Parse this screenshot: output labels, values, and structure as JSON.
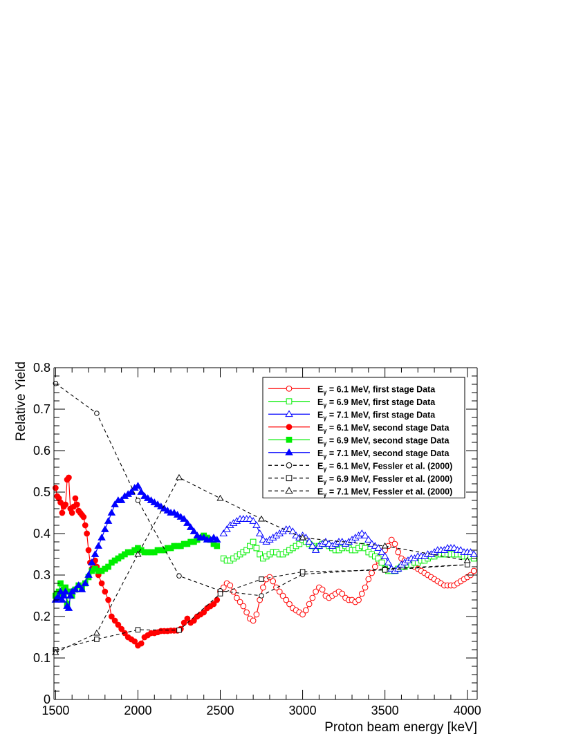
{
  "chart_data": {
    "type": "line",
    "title": "",
    "xlabel": "Proton beam energy [keV]",
    "ylabel": "Relative Yield",
    "xlim": [
      1490,
      4060
    ],
    "ylim": [
      0,
      0.8
    ],
    "x_ticks": [
      1500,
      2000,
      2500,
      3000,
      3500,
      4000
    ],
    "x_tick_labels": [
      "1500",
      "2000",
      "2500",
      "3000",
      "3500",
      "4000"
    ],
    "y_ticks": [
      0,
      0.1,
      0.2,
      0.3,
      0.4,
      0.5,
      0.6,
      0.7,
      0.8
    ],
    "y_tick_labels": [
      "0",
      "0.1",
      "0.2",
      "0.3",
      "0.4",
      "0.5",
      "0.6",
      "0.7",
      "0.8"
    ],
    "grid": false,
    "legend_position": "top-right",
    "series": [
      {
        "name": "Eγ = 6.1 MeV, first stage Data",
        "legend_main": "E",
        "legend_sub": "γ",
        "legend_rest": " = 6.1 MeV, first stage Data",
        "color": "#ff0000",
        "marker": "open-circle",
        "dash": "solid",
        "x": [
          2500,
          2520,
          2540,
          2560,
          2580,
          2600,
          2620,
          2640,
          2660,
          2680,
          2700,
          2720,
          2740,
          2760,
          2780,
          2800,
          2820,
          2840,
          2860,
          2880,
          2900,
          2920,
          2940,
          2960,
          2980,
          3000,
          3020,
          3040,
          3060,
          3080,
          3100,
          3120,
          3140,
          3160,
          3180,
          3200,
          3220,
          3240,
          3260,
          3280,
          3300,
          3320,
          3340,
          3360,
          3380,
          3400,
          3420,
          3440,
          3460,
          3480,
          3500,
          3520,
          3540,
          3560,
          3580,
          3600,
          3620,
          3640,
          3660,
          3680,
          3700,
          3720,
          3740,
          3760,
          3780,
          3800,
          3820,
          3840,
          3860,
          3880,
          3900,
          3920,
          3940,
          3960,
          3980,
          4000,
          4020,
          4040
        ],
        "y": [
          0.26,
          0.27,
          0.28,
          0.275,
          0.26,
          0.245,
          0.235,
          0.225,
          0.21,
          0.195,
          0.19,
          0.205,
          0.24,
          0.27,
          0.29,
          0.295,
          0.285,
          0.27,
          0.26,
          0.25,
          0.24,
          0.23,
          0.22,
          0.215,
          0.21,
          0.205,
          0.215,
          0.23,
          0.245,
          0.26,
          0.27,
          0.265,
          0.25,
          0.245,
          0.25,
          0.255,
          0.26,
          0.255,
          0.245,
          0.24,
          0.24,
          0.235,
          0.24,
          0.255,
          0.27,
          0.29,
          0.305,
          0.32,
          0.335,
          0.345,
          0.36,
          0.37,
          0.385,
          0.375,
          0.355,
          0.34,
          0.335,
          0.33,
          0.325,
          0.32,
          0.315,
          0.31,
          0.305,
          0.3,
          0.295,
          0.29,
          0.285,
          0.28,
          0.275,
          0.275,
          0.275,
          0.275,
          0.28,
          0.285,
          0.29,
          0.295,
          0.3,
          0.31
        ]
      },
      {
        "name": "Eγ = 6.9 MeV, first stage Data",
        "legend_main": "E",
        "legend_sub": "γ",
        "legend_rest": " = 6.9 MeV, first stage Data",
        "color": "#00ee00",
        "marker": "open-square",
        "dash": "solid",
        "x": [
          2520,
          2540,
          2560,
          2580,
          2600,
          2620,
          2640,
          2660,
          2680,
          2700,
          2720,
          2740,
          2760,
          2780,
          2800,
          2820,
          2840,
          2860,
          2880,
          2900,
          2920,
          2940,
          2960,
          2980,
          3000,
          3020,
          3040,
          3060,
          3080,
          3100,
          3120,
          3140,
          3160,
          3180,
          3200,
          3220,
          3240,
          3260,
          3280,
          3300,
          3320,
          3340,
          3360,
          3380,
          3400,
          3420,
          3440,
          3460,
          3480,
          3500,
          3520,
          3540,
          3560,
          3580,
          3600,
          3620,
          3640,
          3660,
          3680,
          3700,
          3720,
          3740,
          3760,
          3780,
          3800,
          3820,
          3840,
          3860,
          3880,
          3900,
          3920,
          3940,
          3960,
          3980,
          4000,
          4020,
          4040
        ],
        "y": [
          0.34,
          0.335,
          0.335,
          0.34,
          0.345,
          0.35,
          0.355,
          0.36,
          0.37,
          0.38,
          0.365,
          0.35,
          0.34,
          0.345,
          0.35,
          0.355,
          0.355,
          0.35,
          0.35,
          0.355,
          0.36,
          0.365,
          0.37,
          0.375,
          0.385,
          0.38,
          0.375,
          0.37,
          0.365,
          0.37,
          0.375,
          0.375,
          0.37,
          0.365,
          0.36,
          0.36,
          0.365,
          0.37,
          0.365,
          0.36,
          0.36,
          0.365,
          0.37,
          0.365,
          0.355,
          0.35,
          0.345,
          0.34,
          0.33,
          0.315,
          0.31,
          0.31,
          0.31,
          0.315,
          0.32,
          0.32,
          0.325,
          0.325,
          0.33,
          0.33,
          0.335,
          0.335,
          0.34,
          0.345,
          0.345,
          0.35,
          0.35,
          0.35,
          0.35,
          0.35,
          0.35,
          0.35,
          0.35,
          0.345,
          0.345,
          0.345,
          0.34
        ]
      },
      {
        "name": "Eγ = 7.1 MeV, first stage Data",
        "legend_main": "E",
        "legend_sub": "γ",
        "legend_rest": " = 7.1 MeV, first stage Data",
        "color": "#0000ff",
        "marker": "open-triangle",
        "dash": "solid",
        "x": [
          2520,
          2540,
          2560,
          2580,
          2600,
          2620,
          2640,
          2660,
          2680,
          2700,
          2720,
          2740,
          2760,
          2780,
          2800,
          2820,
          2840,
          2860,
          2880,
          2900,
          2920,
          2940,
          2960,
          2980,
          3000,
          3020,
          3040,
          3060,
          3080,
          3100,
          3120,
          3140,
          3160,
          3180,
          3200,
          3220,
          3240,
          3260,
          3280,
          3300,
          3320,
          3340,
          3360,
          3380,
          3400,
          3420,
          3440,
          3460,
          3480,
          3500,
          3520,
          3540,
          3560,
          3580,
          3600,
          3620,
          3640,
          3660,
          3680,
          3700,
          3720,
          3740,
          3760,
          3780,
          3800,
          3820,
          3840,
          3860,
          3880,
          3900,
          3920,
          3940,
          3960,
          3980,
          4000,
          4020,
          4040
        ],
        "y": [
          0.4,
          0.41,
          0.42,
          0.425,
          0.43,
          0.435,
          0.435,
          0.435,
          0.435,
          0.43,
          0.42,
          0.4,
          0.385,
          0.38,
          0.385,
          0.39,
          0.395,
          0.4,
          0.405,
          0.41,
          0.41,
          0.405,
          0.395,
          0.39,
          0.395,
          0.39,
          0.38,
          0.37,
          0.36,
          0.37,
          0.375,
          0.38,
          0.375,
          0.37,
          0.375,
          0.38,
          0.38,
          0.375,
          0.38,
          0.385,
          0.39,
          0.395,
          0.4,
          0.395,
          0.385,
          0.375,
          0.37,
          0.365,
          0.355,
          0.345,
          0.33,
          0.315,
          0.31,
          0.315,
          0.325,
          0.33,
          0.335,
          0.34,
          0.34,
          0.345,
          0.345,
          0.345,
          0.35,
          0.35,
          0.355,
          0.36,
          0.36,
          0.36,
          0.365,
          0.365,
          0.365,
          0.36,
          0.36,
          0.355,
          0.355,
          0.355,
          0.35
        ]
      },
      {
        "name": "Eγ = 6.1 MeV, second stage Data",
        "legend_main": "E",
        "legend_sub": "γ",
        "legend_rest": " = 6.1 MeV, second stage Data",
        "color": "#ff0000",
        "marker": "filled-circle",
        "dash": "solid",
        "x": [
          1500,
          1510,
          1520,
          1530,
          1540,
          1550,
          1560,
          1570,
          1580,
          1590,
          1600,
          1610,
          1620,
          1630,
          1640,
          1650,
          1660,
          1670,
          1680,
          1690,
          1700,
          1710,
          1720,
          1730,
          1740,
          1750,
          1760,
          1780,
          1800,
          1820,
          1840,
          1860,
          1880,
          1900,
          1920,
          1940,
          1960,
          1980,
          2000,
          2020,
          2040,
          2060,
          2080,
          2100,
          2120,
          2140,
          2160,
          2180,
          2200,
          2220,
          2240,
          2260,
          2280,
          2300,
          2320,
          2340,
          2360,
          2380,
          2400,
          2420,
          2440,
          2460,
          2480
        ],
        "y": [
          0.51,
          0.49,
          0.485,
          0.475,
          0.45,
          0.465,
          0.47,
          0.53,
          0.535,
          0.46,
          0.45,
          0.465,
          0.485,
          0.47,
          0.455,
          0.45,
          0.445,
          0.44,
          0.42,
          0.4,
          0.36,
          0.33,
          0.315,
          0.33,
          0.335,
          0.32,
          0.3,
          0.28,
          0.26,
          0.24,
          0.2,
          0.19,
          0.18,
          0.17,
          0.16,
          0.15,
          0.145,
          0.14,
          0.13,
          0.135,
          0.15,
          0.155,
          0.16,
          0.16,
          0.162,
          0.165,
          0.165,
          0.165,
          0.166,
          0.166,
          0.166,
          0.17,
          0.185,
          0.195,
          0.185,
          0.19,
          0.2,
          0.205,
          0.21,
          0.22,
          0.225,
          0.23,
          0.24
        ]
      },
      {
        "name": "Eγ = 6.9 MeV, second stage Data",
        "legend_main": "E",
        "legend_sub": "γ",
        "legend_rest": " = 6.9 MeV, second stage Data",
        "color": "#00ee00",
        "marker": "filled-square",
        "dash": "solid",
        "x": [
          1500,
          1510,
          1520,
          1530,
          1540,
          1550,
          1560,
          1570,
          1580,
          1590,
          1600,
          1620,
          1640,
          1660,
          1680,
          1700,
          1720,
          1740,
          1760,
          1780,
          1800,
          1820,
          1840,
          1860,
          1880,
          1900,
          1920,
          1940,
          1960,
          1980,
          2000,
          2020,
          2040,
          2060,
          2080,
          2100,
          2120,
          2140,
          2160,
          2180,
          2200,
          2220,
          2240,
          2260,
          2280,
          2300,
          2320,
          2340,
          2360,
          2380,
          2400,
          2420,
          2440,
          2460,
          2480
        ],
        "y": [
          0.25,
          0.255,
          0.26,
          0.28,
          0.255,
          0.265,
          0.27,
          0.23,
          0.26,
          0.26,
          0.25,
          0.265,
          0.275,
          0.27,
          0.28,
          0.295,
          0.31,
          0.315,
          0.31,
          0.31,
          0.315,
          0.32,
          0.33,
          0.335,
          0.34,
          0.345,
          0.35,
          0.355,
          0.355,
          0.36,
          0.365,
          0.36,
          0.355,
          0.355,
          0.355,
          0.355,
          0.36,
          0.36,
          0.36,
          0.365,
          0.365,
          0.37,
          0.37,
          0.37,
          0.375,
          0.375,
          0.38,
          0.38,
          0.385,
          0.39,
          0.395,
          0.39,
          0.385,
          0.375,
          0.37
        ]
      },
      {
        "name": "Eγ = 7.1 MeV, second stage Data",
        "legend_main": "E",
        "legend_sub": "γ",
        "legend_rest": " = 7.1 MeV, second stage Data",
        "color": "#0000ff",
        "marker": "filled-triangle",
        "dash": "solid",
        "x": [
          1500,
          1510,
          1520,
          1530,
          1540,
          1550,
          1560,
          1570,
          1580,
          1590,
          1600,
          1620,
          1640,
          1660,
          1680,
          1700,
          1720,
          1740,
          1760,
          1780,
          1800,
          1820,
          1840,
          1860,
          1880,
          1900,
          1920,
          1940,
          1960,
          1980,
          2000,
          2020,
          2040,
          2060,
          2080,
          2100,
          2120,
          2140,
          2160,
          2180,
          2200,
          2220,
          2240,
          2260,
          2280,
          2300,
          2320,
          2340,
          2360,
          2380,
          2400,
          2420,
          2440,
          2460,
          2480
        ],
        "y": [
          0.24,
          0.245,
          0.245,
          0.26,
          0.24,
          0.25,
          0.26,
          0.225,
          0.22,
          0.25,
          0.26,
          0.265,
          0.275,
          0.265,
          0.28,
          0.3,
          0.33,
          0.35,
          0.37,
          0.39,
          0.41,
          0.43,
          0.45,
          0.47,
          0.48,
          0.48,
          0.49,
          0.495,
          0.5,
          0.51,
          0.515,
          0.5,
          0.49,
          0.485,
          0.48,
          0.475,
          0.47,
          0.465,
          0.46,
          0.455,
          0.45,
          0.45,
          0.445,
          0.44,
          0.435,
          0.425,
          0.415,
          0.405,
          0.395,
          0.39,
          0.39,
          0.385,
          0.385,
          0.39,
          0.385
        ]
      },
      {
        "name": "Eγ = 6.1 MeV, Fessler et al. (2000)",
        "legend_main": "E",
        "legend_sub": "γ",
        "legend_rest": " = 6.1 MeV, Fessler et al. (2000)",
        "color": "#000000",
        "marker": "open-circle",
        "dash": "dashed",
        "x": [
          1500,
          1750,
          2000,
          2250,
          2500,
          2750,
          3000,
          3500,
          4000
        ],
        "y": [
          0.762,
          0.69,
          0.48,
          0.298,
          0.262,
          0.25,
          0.302,
          0.315,
          0.325
        ]
      },
      {
        "name": "Eγ = 6.9 MeV, Fessler et al. (2000)",
        "legend_main": "E",
        "legend_sub": "γ",
        "legend_rest": " = 6.9 MeV, Fessler et al. (2000)",
        "color": "#000000",
        "marker": "open-square",
        "dash": "dashed",
        "x": [
          1500,
          1750,
          2000,
          2250,
          2500,
          2750,
          3000,
          3500,
          4000
        ],
        "y": [
          0.12,
          0.145,
          0.168,
          0.167,
          0.255,
          0.29,
          0.308,
          0.312,
          0.325
        ]
      },
      {
        "name": "Eγ = 7.1 MeV, Fessler et al. (2000)",
        "legend_main": "E",
        "legend_sub": "γ",
        "legend_rest": " = 7.1 MeV, Fessler et al. (2000)",
        "color": "#000000",
        "marker": "open-triangle",
        "dash": "dashed",
        "x": [
          1500,
          1750,
          2000,
          2250,
          2500,
          2750,
          3000,
          3500,
          4000
        ],
        "y": [
          0.113,
          0.16,
          0.35,
          0.535,
          0.485,
          0.435,
          0.39,
          0.37,
          0.335
        ]
      }
    ]
  }
}
